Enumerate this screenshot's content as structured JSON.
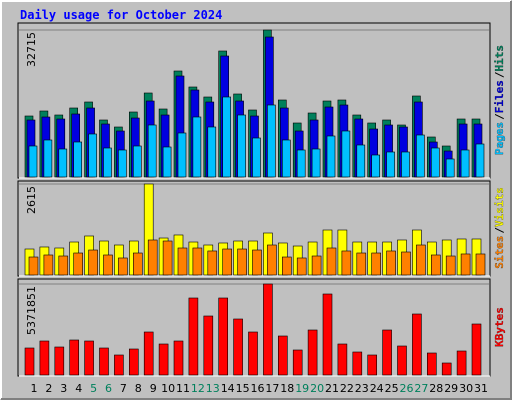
{
  "chart_data": [
    {
      "type": "bar",
      "title": "Daily usage for October 2024",
      "categories": [
        "1",
        "2",
        "3",
        "4",
        "5",
        "6",
        "7",
        "8",
        "9",
        "10",
        "11",
        "12",
        "13",
        "14",
        "15",
        "16",
        "17",
        "18",
        "19",
        "20",
        "21",
        "22",
        "23",
        "24",
        "25",
        "26",
        "27",
        "28",
        "29",
        "30",
        "31"
      ],
      "category_colors": [
        "#000000",
        "#000000",
        "#000000",
        "#000000",
        "#00805c",
        "#00805c",
        "#000000",
        "#000000",
        "#000000",
        "#000000",
        "#000000",
        "#00805c",
        "#00805c",
        "#000000",
        "#000000",
        "#000000",
        "#000000",
        "#000000",
        "#00805c",
        "#00805c",
        "#000000",
        "#000000",
        "#000000",
        "#000000",
        "#000000",
        "#00805c",
        "#00805c",
        "#000000",
        "#000000",
        "#000000",
        "#000000"
      ],
      "legend_separator": "/",
      "ylim": [
        0,
        32715
      ],
      "yticks": [
        32715
      ],
      "series": [
        {
          "name": "Hits",
          "color": "#00805c",
          "values": [
            13576,
            14688,
            13798,
            15356,
            16691,
            12685,
            11128,
            14466,
            18694,
            15133,
            23590,
            20030,
            17804,
            28041,
            18472,
            14911,
            32715,
            17136,
            12018,
            14243,
            16914,
            17136,
            13798,
            12018,
            12685,
            11573,
            18027,
            8902,
            6899,
            12908,
            12908
          ]
        },
        {
          "name": "Files",
          "color": "#0000e0",
          "values": [
            12685,
            13353,
            12908,
            14021,
            15356,
            11795,
            10237,
            13130,
            16914,
            13798,
            22478,
            19362,
            16691,
            26929,
            16914,
            13576,
            31157,
            15356,
            10237,
            12685,
            15579,
            16024,
            12908,
            10682,
            11573,
            11128,
            16691,
            7789,
            5786,
            11795,
            11795
          ]
        },
        {
          "name": "Pages",
          "color": "#00c0ff",
          "values": [
            6899,
            8234,
            6231,
            7789,
            9570,
            6454,
            6009,
            6899,
            11573,
            6677,
            9792,
            13353,
            11128,
            17804,
            13798,
            8679,
            16024,
            8234,
            6009,
            6231,
            9125,
            10237,
            7122,
            4896,
            5564,
            5564,
            9347,
            6454,
            4006,
            6009,
            7344
          ]
        }
      ]
    },
    {
      "type": "bar",
      "legend_separator": "/",
      "ylim": [
        0,
        2615
      ],
      "yticks": [
        2615
      ],
      "series": [
        {
          "name": "Visits",
          "color": "#ffff00",
          "values": [
            747,
            805,
            776,
            948,
            1121,
            977,
            862,
            977,
            2615,
            1063,
            1150,
            948,
            862,
            920,
            977,
            977,
            1207,
            920,
            833,
            948,
            1293,
            1293,
            948,
            948,
            948,
            1006,
            1293,
            948,
            1006,
            1035,
            1035
          ]
        },
        {
          "name": "Sites",
          "color": "#ff8000",
          "values": [
            517,
            575,
            546,
            632,
            718,
            575,
            489,
            632,
            1006,
            977,
            776,
            776,
            690,
            747,
            747,
            718,
            862,
            517,
            489,
            546,
            776,
            690,
            632,
            632,
            690,
            661,
            862,
            575,
            546,
            604,
            604
          ]
        }
      ]
    },
    {
      "type": "bar",
      "ylim": [
        0,
        5371851
      ],
      "yticks": [
        5371851
      ],
      "series": [
        {
          "name": "KBytes",
          "color": "#ff0000",
          "values": [
            1593837,
            2007054,
            1652868,
            2066085,
            2007054,
            1593837,
            1180620,
            1534806,
            2538333,
            1829961,
            2007054,
            4545387,
            3482829,
            4545387,
            3305736,
            2538333,
            5371851,
            2302209,
            1475775,
            2656395,
            4781511,
            1829961,
            1357713,
            1180620,
            2656395,
            1711899,
            3600891,
            1298682,
            708372,
            1416744,
            3010581
          ]
        }
      ]
    }
  ]
}
